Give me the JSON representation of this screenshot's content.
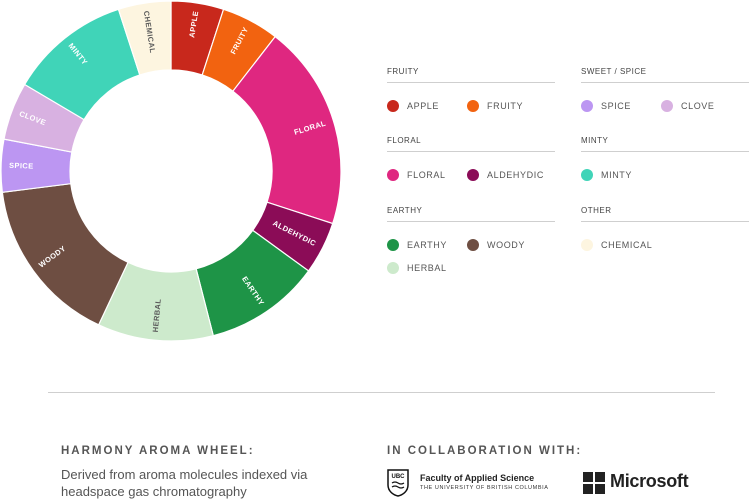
{
  "chart_data": {
    "type": "pie",
    "donut": true,
    "slices": [
      {
        "label": "APPLE",
        "value": 5.0,
        "color": "#c8281c"
      },
      {
        "label": "FRUITY",
        "value": 5.5,
        "color": "#f26310"
      },
      {
        "label": "FLORAL",
        "value": 19.5,
        "color": "#df2780"
      },
      {
        "label": "ALDEHYDIC",
        "value": 5.0,
        "color": "#8b0c57"
      },
      {
        "label": "EARTHY",
        "value": 11.0,
        "color": "#1e9447"
      },
      {
        "label": "HERBAL",
        "value": 11.0,
        "color": "#cdeacc"
      },
      {
        "label": "WOODY",
        "value": 16.0,
        "color": "#6e4e42"
      },
      {
        "label": "SPICE",
        "value": 5.0,
        "color": "#bc96f2"
      },
      {
        "label": "CLOVE",
        "value": 5.5,
        "color": "#d8b1e1"
      },
      {
        "label": "MINTY",
        "value": 11.5,
        "color": "#40d4b8"
      },
      {
        "label": "CHEMICAL",
        "value": 5.0,
        "color": "#fdf5e0"
      }
    ]
  },
  "legend": {
    "groups": [
      {
        "title": "FRUITY",
        "items": [
          {
            "label": "APPLE",
            "color": "#c8281c"
          },
          {
            "label": "FRUITY",
            "color": "#f26310"
          }
        ]
      },
      {
        "title": "SWEET / SPICE",
        "items": [
          {
            "label": "SPICE",
            "color": "#bc96f2"
          },
          {
            "label": "CLOVE",
            "color": "#d8b1e1"
          }
        ]
      },
      {
        "title": "FLORAL",
        "items": [
          {
            "label": "FLORAL",
            "color": "#df2780"
          },
          {
            "label": "ALDEHYDIC",
            "color": "#8b0c57"
          }
        ]
      },
      {
        "title": "MINTY",
        "items": [
          {
            "label": "MINTY",
            "color": "#40d4b8"
          }
        ]
      },
      {
        "title": "EARTHY",
        "items": [
          {
            "label": "EARTHY",
            "color": "#1e9447"
          },
          {
            "label": "WOODY",
            "color": "#6e4e42"
          },
          {
            "label": "HERBAL",
            "color": "#cdeacc"
          }
        ]
      },
      {
        "title": "OTHER",
        "items": [
          {
            "label": "CHEMICAL",
            "color": "#fdf5e0"
          }
        ]
      }
    ]
  },
  "footer": {
    "title": "HARMONY AROMA WHEEL:",
    "description": "Derived from aroma molecules indexed via headspace gas chromatography",
    "collab_heading": "IN COLLABORATION WITH:",
    "ubc_logo_text": "UBC",
    "ubc_name": "Faculty of Applied Science",
    "ubc_subtitle": "THE UNIVERSITY OF BRITISH COLUMBIA",
    "microsoft_name": "Microsoft"
  }
}
